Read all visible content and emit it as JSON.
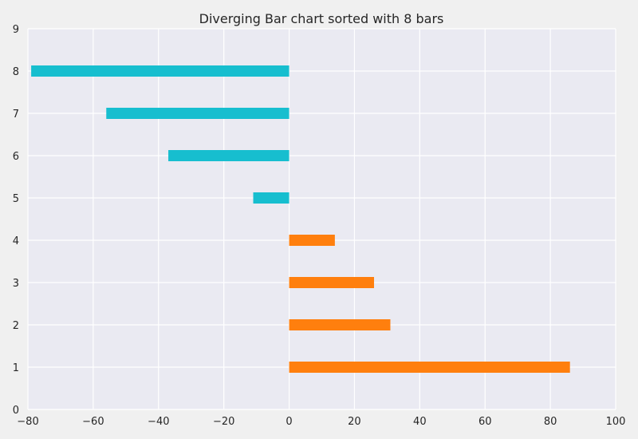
{
  "chart_data": {
    "type": "bar",
    "orientation": "horizontal",
    "title": "Diverging Bar chart sorted with 8 bars",
    "xlabel": "",
    "ylabel": "",
    "xlim": [
      -80,
      100
    ],
    "ylim": [
      0,
      9
    ],
    "x_ticks": [
      -80,
      -60,
      -40,
      -20,
      0,
      20,
      40,
      60,
      80,
      100
    ],
    "x_tick_labels": [
      "−80",
      "−60",
      "−40",
      "−20",
      "0",
      "20",
      "40",
      "60",
      "80",
      "100"
    ],
    "y_ticks": [
      0,
      1,
      2,
      3,
      4,
      5,
      6,
      7,
      8,
      9
    ],
    "y_tick_labels": [
      "0",
      "1",
      "2",
      "3",
      "4",
      "5",
      "6",
      "7",
      "8",
      "9"
    ],
    "grid": true,
    "categories": [
      1,
      2,
      3,
      4,
      5,
      6,
      7,
      8
    ],
    "values": [
      86,
      31,
      26,
      14,
      -11,
      -37,
      -56,
      -79
    ],
    "colors": {
      "positive": "#ff7f0e",
      "negative": "#17becf",
      "plot_background": "#eaeaf2",
      "grid": "#ffffff",
      "page_background": "#f0f0f0"
    }
  }
}
